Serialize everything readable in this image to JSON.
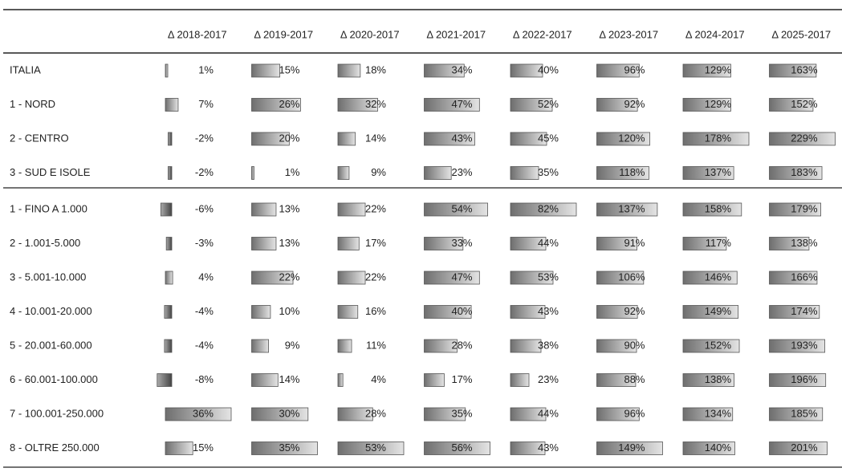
{
  "table": {
    "headers": [
      "Δ 2018-2017",
      "Δ 2019-2017",
      "Δ 2020-2017",
      "Δ 2021-2017",
      "Δ 2022-2017",
      "Δ 2023-2017",
      "Δ 2024-2017",
      "Δ 2025-2017"
    ],
    "rows": [
      {
        "label": "ITALIA",
        "values": [
          1,
          15,
          18,
          34,
          40,
          96,
          129,
          163
        ],
        "value_labels": [
          "1%",
          "15%",
          "18%",
          "34%",
          "40%",
          "96%",
          "129%",
          "163%"
        ]
      },
      {
        "label": "1 - NORD",
        "values": [
          7,
          26,
          32,
          47,
          52,
          92,
          129,
          152
        ],
        "value_labels": [
          "7%",
          "26%",
          "32%",
          "47%",
          "52%",
          "92%",
          "129%",
          "152%"
        ]
      },
      {
        "label": "2 - CENTRO",
        "values": [
          -2,
          20,
          14,
          43,
          45,
          120,
          178,
          229
        ],
        "value_labels": [
          "-2%",
          "20%",
          "14%",
          "43%",
          "45%",
          "120%",
          "178%",
          "229%"
        ]
      },
      {
        "label": "3 - SUD E ISOLE",
        "values": [
          -2,
          1,
          9,
          23,
          35,
          118,
          137,
          183
        ],
        "value_labels": [
          "-2%",
          "1%",
          "9%",
          "23%",
          "35%",
          "118%",
          "137%",
          "183%"
        ]
      },
      {
        "label": "1 - FINO A 1.000",
        "values": [
          -6,
          13,
          22,
          54,
          82,
          137,
          158,
          179
        ],
        "value_labels": [
          "-6%",
          "13%",
          "22%",
          "54%",
          "82%",
          "137%",
          "158%",
          "179%"
        ]
      },
      {
        "label": "2 - 1.001-5.000",
        "values": [
          -3,
          13,
          17,
          33,
          44,
          91,
          117,
          138
        ],
        "value_labels": [
          "-3%",
          "13%",
          "17%",
          "33%",
          "44%",
          "91%",
          "117%",
          "138%"
        ]
      },
      {
        "label": "3 - 5.001-10.000",
        "values": [
          4,
          22,
          22,
          47,
          53,
          106,
          146,
          166
        ],
        "value_labels": [
          "4%",
          "22%",
          "22%",
          "47%",
          "53%",
          "106%",
          "146%",
          "166%"
        ]
      },
      {
        "label": "4 - 10.001-20.000",
        "values": [
          -4,
          10,
          16,
          40,
          43,
          92,
          149,
          174
        ],
        "value_labels": [
          "-4%",
          "10%",
          "16%",
          "40%",
          "43%",
          "92%",
          "149%",
          "174%"
        ]
      },
      {
        "label": "5 - 20.001-60.000",
        "values": [
          -4,
          9,
          11,
          28,
          38,
          90,
          152,
          193
        ],
        "value_labels": [
          "-4%",
          "9%",
          "11%",
          "28%",
          "38%",
          "90%",
          "152%",
          "193%"
        ]
      },
      {
        "label": "6 - 60.001-100.000",
        "values": [
          -8,
          14,
          4,
          17,
          23,
          88,
          138,
          196
        ],
        "value_labels": [
          "-8%",
          "14%",
          "4%",
          "17%",
          "23%",
          "88%",
          "138%",
          "196%"
        ]
      },
      {
        "label": "7 - 100.001-250.000",
        "values": [
          36,
          30,
          28,
          35,
          44,
          96,
          134,
          185
        ],
        "value_labels": [
          "36%",
          "30%",
          "28%",
          "35%",
          "44%",
          "96%",
          "134%",
          "185%"
        ]
      },
      {
        "label": "8 - OLTRE 250.000",
        "values": [
          15,
          35,
          53,
          56,
          43,
          149,
          140,
          201
        ],
        "value_labels": [
          "15%",
          "35%",
          "53%",
          "56%",
          "43%",
          "149%",
          "140%",
          "201%"
        ]
      }
    ]
  }
}
